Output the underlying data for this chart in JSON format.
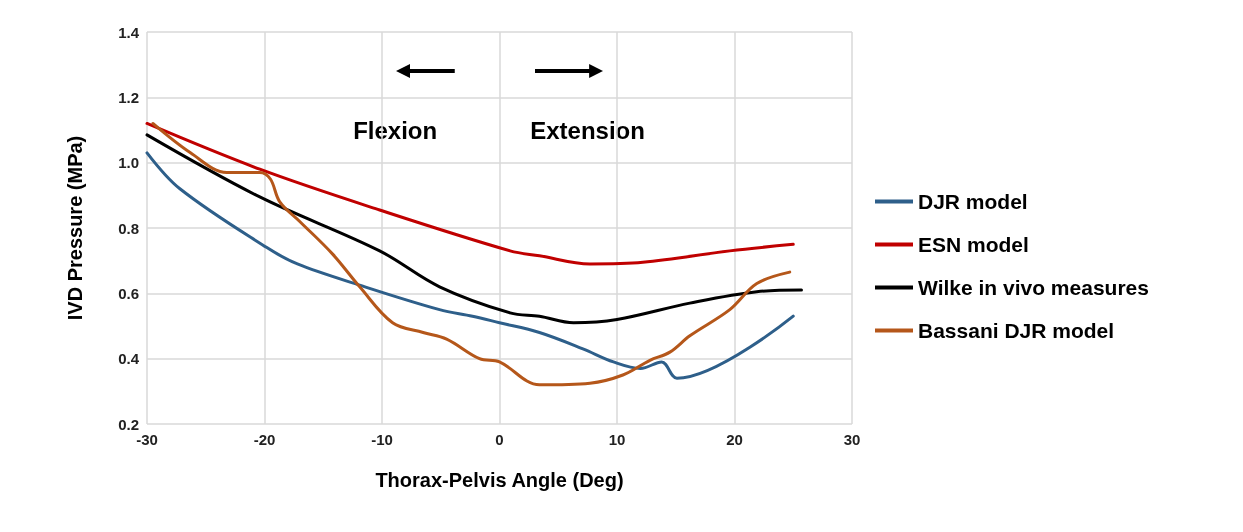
{
  "chart_data": {
    "type": "line",
    "xlabel": "Thorax-Pelvis Angle (Deg)",
    "ylabel": "IVD Pressure (MPa)",
    "annotations": [
      "Flexion",
      "Extension"
    ],
    "xlim": [
      -30,
      30
    ],
    "xticks": [
      -30,
      -20,
      -10,
      0,
      10,
      20,
      30
    ],
    "ylim": [
      0.2,
      1.4
    ],
    "yticks": [
      0.2,
      0.4,
      0.6,
      0.8,
      {
        "value": 1,
        "label": "1.0"
      },
      1.2,
      1.4
    ],
    "grid": true,
    "legend": "right",
    "marker": "none",
    "line_style": "solid",
    "series": [
      {
        "name": "DJR model",
        "color": "#2e5f8a",
        "x": [
          -30,
          -27.2,
          -19.8,
          -17.2,
          -11.9,
          -5.1,
          -2.3,
          0.0,
          3.4,
          7.1,
          9.7,
          12,
          13.8,
          15.1,
          25
        ],
        "values": [
          1.03,
          0.92,
          0.74,
          0.69,
          0.625,
          0.55,
          0.53,
          0.51,
          0.48,
          0.43,
          0.39,
          0.37,
          0.39,
          0.34,
          0.53
        ]
      },
      {
        "name": "ESN model",
        "color": "#c00000",
        "x": [
          -30,
          -20.4,
          -10.2,
          0.9,
          3.4,
          7.7,
          12.2,
          19.6,
          25
        ],
        "values": [
          1.12,
          0.98,
          0.855,
          0.73,
          0.715,
          0.69,
          0.695,
          0.73,
          0.75
        ]
      },
      {
        "name": "Wilke in vivo measures",
        "color": "#000000",
        "x": [
          -30,
          -20.4,
          -10.2,
          -5.1,
          0.9,
          3.4,
          6.3,
          10,
          16.2,
          21.9,
          25.7
        ],
        "values": [
          1.085,
          0.895,
          0.73,
          0.62,
          0.54,
          0.53,
          0.51,
          0.52,
          0.57,
          0.605,
          0.61
        ]
      },
      {
        "name": "Bassani DJR model",
        "color": "#b5571a",
        "x": [
          -29.5,
          -26.3,
          -23.2,
          -20.4,
          -19.5,
          -18.7,
          -17,
          -14.2,
          -11.9,
          -9.1,
          -6.5,
          -4.5,
          -1.7,
          0.0,
          3.4,
          7.7,
          10.5,
          12.8,
          14.5,
          16.2,
          19.6,
          21.9,
          24.7
        ],
        "values": [
          1.12,
          1.03,
          0.97,
          0.97,
          0.95,
          0.88,
          0.82,
          0.72,
          0.62,
          0.51,
          0.48,
          0.46,
          0.4,
          0.39,
          0.32,
          0.325,
          0.35,
          0.395,
          0.42,
          0.47,
          0.55,
          0.63,
          0.665
        ]
      }
    ]
  }
}
